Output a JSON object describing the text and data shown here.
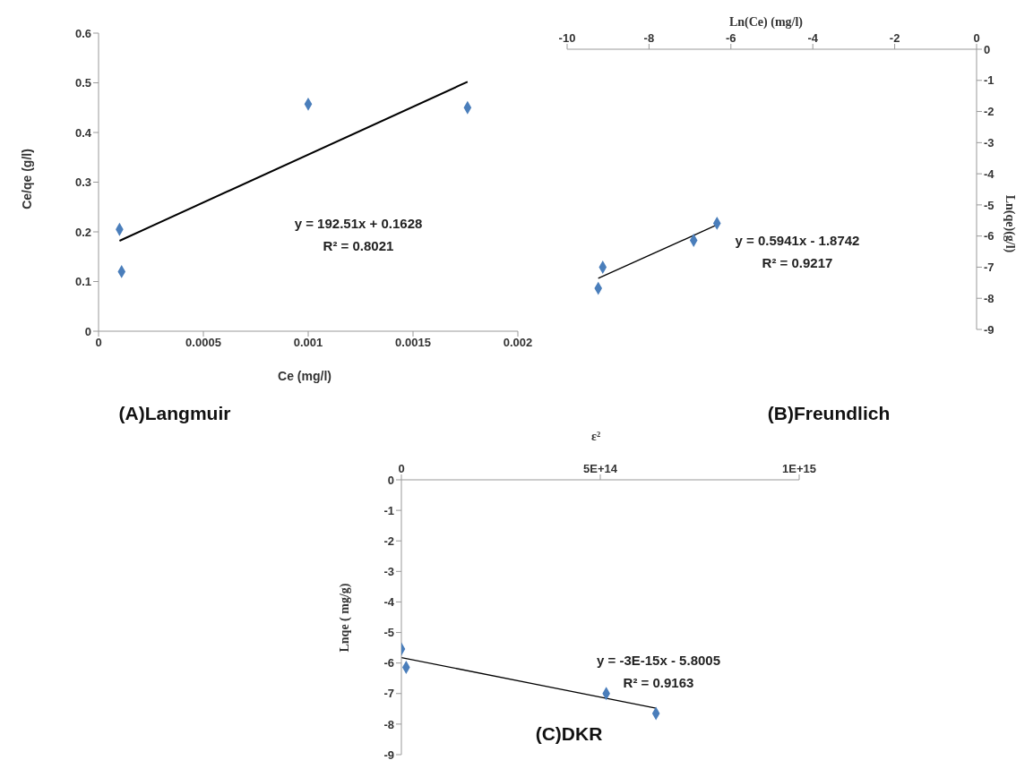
{
  "chart_data": [
    {
      "type": "scatter",
      "title": "(A)Langmuir",
      "xlabel": "Ce (mg/l)",
      "ylabel": "Ce/qe (g/l)",
      "xlim": [
        0,
        0.002
      ],
      "xticks": [
        0,
        0.0005,
        0.001,
        0.0015,
        0.002
      ],
      "ylim": [
        0,
        0.6
      ],
      "yticks": [
        0,
        0.1,
        0.2,
        0.3,
        0.4,
        0.5,
        0.6
      ],
      "annotations": [
        "y = 192.51x + 0.1628",
        "R² = 0.8021"
      ],
      "series": [
        {
          "color": "#4a7ebb",
          "marker": "diamond",
          "x": [
            0.0001,
            0.00011,
            0.001,
            0.00176
          ],
          "values": [
            0.205,
            0.12,
            0.457,
            0.45
          ]
        },
        {
          "type": "line",
          "marker": "none",
          "color": "#000000",
          "x": [
            0.0001,
            0.00176
          ],
          "values": [
            0.182,
            0.502
          ]
        }
      ]
    },
    {
      "type": "scatter",
      "title": "(B)Freundlich",
      "xlabel": "Ln(Ce)  (mg/l)",
      "ylabel": "Ln(qe)(g/l)",
      "xlim": [
        -10,
        0
      ],
      "xticks": [
        -10,
        -8,
        -6,
        -4,
        -2,
        0
      ],
      "ylim": [
        -9,
        0
      ],
      "yticks": [
        -9,
        -8,
        -7,
        -6,
        -5,
        -4,
        -3,
        -2,
        -1,
        0
      ],
      "annotations": [
        "y = 0.5941x - 1.8742",
        "R² = 0.9217"
      ],
      "series": [
        {
          "color": "#4a7ebb",
          "marker": "diamond",
          "x": [
            -9.24,
            -9.13,
            -6.91,
            -6.34
          ],
          "values": [
            -7.68,
            -7.0,
            -6.14,
            -5.59
          ]
        },
        {
          "type": "line",
          "marker": "none",
          "color": "#000000",
          "x": [
            -9.24,
            -6.34
          ],
          "values": [
            -7.36,
            -5.64
          ]
        }
      ]
    },
    {
      "type": "scatter",
      "title": "(C)DKR",
      "xlabel": "ε²",
      "ylabel": "Lnqe ( mg/g)",
      "xlim": [
        0,
        1000000000000000.0
      ],
      "xticks": [
        0,
        {
          "value": 500000000000000.0,
          "label": "5E+14"
        },
        {
          "value": 1000000000000000.0,
          "label": "1E+15"
        }
      ],
      "ylim": [
        -9,
        0
      ],
      "yticks": [
        -9,
        -8,
        -7,
        -6,
        -5,
        -4,
        -3,
        -2,
        -1,
        0
      ],
      "annotations": [
        "y = -3E-15x - 5.8005",
        "R² = 0.9163"
      ],
      "series": [
        {
          "color": "#4a7ebb",
          "marker": "diamond",
          "x": [
            0,
            12000000000000.0,
            515000000000000.0,
            640000000000000.0
          ],
          "values": [
            -5.54,
            -6.14,
            -7.0,
            -7.65
          ]
        },
        {
          "type": "line",
          "marker": "none",
          "color": "#000000",
          "x": [
            0,
            640000000000000.0
          ],
          "values": [
            -5.82,
            -7.48
          ]
        }
      ]
    }
  ]
}
